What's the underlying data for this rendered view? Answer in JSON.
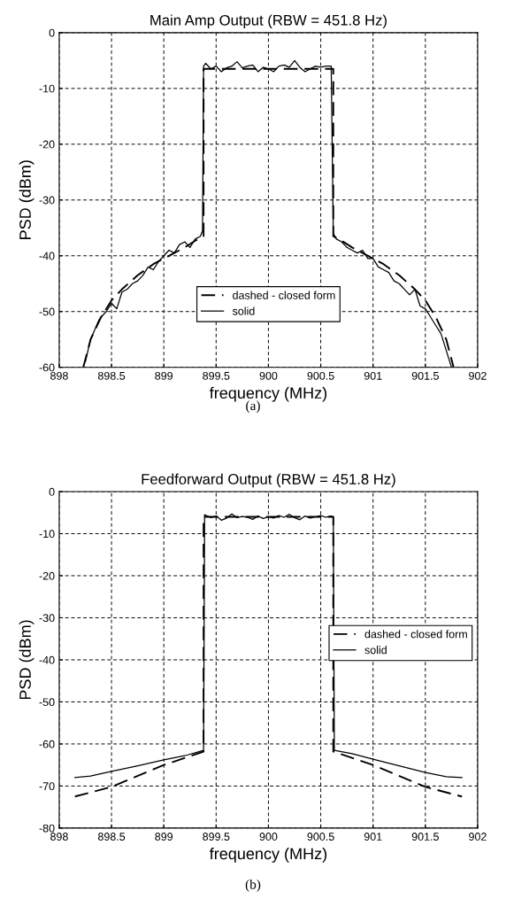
{
  "chart_data": [
    {
      "type": "line",
      "title": "Main Amp Output (RBW = 451.8 Hz)",
      "xlabel": "frequency (MHz)",
      "ylabel": "PSD (dBm)",
      "xlim": [
        898,
        902
      ],
      "ylim": [
        -60,
        0
      ],
      "xticks": [
        898,
        898.5,
        899,
        899.5,
        900,
        900.5,
        901,
        901.5,
        902
      ],
      "yticks": [
        -60,
        -50,
        -40,
        -30,
        -20,
        -10,
        0
      ],
      "grid": true,
      "legend": "bottom",
      "annotations": [
        "(a)"
      ],
      "series": [
        {
          "name": "dashed - closed form",
          "color": "#000000",
          "line_style": "dashed",
          "x": [
            898.23,
            898.3,
            898.4,
            898.5,
            898.6,
            898.75,
            898.9,
            899.0,
            899.1,
            899.2,
            899.3,
            899.38,
            899.38,
            899.5,
            900.0,
            900.5,
            900.62,
            900.62,
            900.7,
            900.8,
            900.9,
            901.0,
            901.1,
            901.25,
            901.4,
            901.5,
            901.6,
            901.7,
            901.77
          ],
          "values": [
            -60,
            -55,
            -51,
            -48,
            -46,
            -43.5,
            -41.5,
            -40.5,
            -39.5,
            -38.5,
            -37.3,
            -36.5,
            -6.5,
            -6.5,
            -6.5,
            -6.5,
            -6.5,
            -36.5,
            -37.3,
            -38.5,
            -39.5,
            -40.5,
            -41.5,
            -43.5,
            -46,
            -48,
            -51,
            -55,
            -60
          ]
        },
        {
          "name": "solid",
          "color": "#000000",
          "line_style": "solid",
          "x": [
            898.25,
            898.3,
            898.38,
            898.4,
            898.45,
            898.5,
            898.55,
            898.6,
            898.65,
            898.7,
            898.75,
            898.8,
            898.85,
            898.9,
            898.95,
            899.0,
            899.05,
            899.1,
            899.15,
            899.2,
            899.25,
            899.3,
            899.35,
            899.37,
            899.38,
            899.4,
            899.45,
            899.5,
            899.55,
            899.6,
            899.65,
            899.7,
            899.75,
            899.8,
            899.85,
            899.9,
            899.95,
            900.0,
            900.05,
            900.1,
            900.15,
            900.2,
            900.25,
            900.3,
            900.35,
            900.4,
            900.45,
            900.5,
            900.55,
            900.6,
            900.62,
            900.65,
            900.7,
            900.75,
            900.8,
            900.85,
            900.9,
            900.95,
            901.0,
            901.05,
            901.1,
            901.15,
            901.2,
            901.25,
            901.3,
            901.35,
            901.4,
            901.45,
            901.5,
            901.55,
            901.6,
            901.65,
            901.7,
            901.75
          ],
          "values": [
            -59,
            -55,
            -51.5,
            -51,
            -50,
            -48.5,
            -49.5,
            -46.5,
            -46,
            -45,
            -44.5,
            -43.5,
            -42,
            -42.5,
            -41,
            -40,
            -39,
            -39.5,
            -38,
            -37.5,
            -38.5,
            -37,
            -36.5,
            -35.5,
            -6,
            -5.5,
            -6.5,
            -6,
            -7,
            -6.3,
            -6,
            -5.2,
            -6.3,
            -6,
            -5.8,
            -7,
            -6.2,
            -6.5,
            -7,
            -6,
            -5.8,
            -6.2,
            -5,
            -6.2,
            -7,
            -6.5,
            -6,
            -6.2,
            -6,
            -6,
            -36,
            -37,
            -37.5,
            -38.5,
            -39,
            -39.5,
            -39,
            -40.5,
            -40.5,
            -42,
            -42.5,
            -43,
            -44.5,
            -45,
            -46,
            -47,
            -46,
            -49,
            -49.5,
            -51,
            -52.5,
            -54,
            -57,
            -60
          ]
        }
      ]
    },
    {
      "type": "line",
      "title": "Feedforward Output (RBW = 451.8 Hz)",
      "xlabel": "frequency (MHz)",
      "ylabel": "PSD (dBm)",
      "xlim": [
        898,
        902
      ],
      "ylim": [
        -80,
        0
      ],
      "xticks": [
        898,
        898.5,
        899,
        899.5,
        900,
        900.5,
        901,
        901.5,
        902
      ],
      "yticks": [
        -80,
        -70,
        -60,
        -50,
        -40,
        -30,
        -20,
        -10,
        0
      ],
      "grid": true,
      "legend": "right",
      "annotations": [
        "(b)"
      ],
      "series": [
        {
          "name": "dashed - closed form",
          "color": "#000000",
          "line_style": "dashed",
          "x": [
            898.15,
            898.5,
            899.0,
            899.38,
            899.38,
            900.0,
            900.62,
            900.62,
            901.0,
            901.5,
            901.85
          ],
          "values": [
            -72.5,
            -70.2,
            -65,
            -61.8,
            -6,
            -6,
            -6,
            -61.8,
            -65,
            -70.2,
            -72.5
          ]
        },
        {
          "name": "solid",
          "color": "#000000",
          "line_style": "solid",
          "x": [
            898.15,
            898.3,
            898.5,
            898.75,
            899.0,
            899.2,
            899.38,
            899.39,
            899.45,
            899.5,
            899.55,
            899.6,
            899.65,
            899.7,
            899.75,
            899.8,
            899.85,
            899.9,
            899.95,
            900.0,
            900.05,
            900.1,
            900.15,
            900.2,
            900.25,
            900.3,
            900.35,
            900.4,
            900.45,
            900.5,
            900.55,
            900.6,
            900.62,
            900.63,
            900.8,
            901.0,
            901.25,
            901.5,
            901.7,
            901.85
          ],
          "values": [
            -68,
            -67.6,
            -66.5,
            -65.2,
            -63.8,
            -62.8,
            -61.5,
            -5.5,
            -6.2,
            -5.8,
            -6.8,
            -6.3,
            -5.3,
            -6.2,
            -5.9,
            -6.1,
            -6.6,
            -5.8,
            -6.4,
            -6,
            -6.3,
            -5.7,
            -6.1,
            -5.4,
            -6.2,
            -6.7,
            -5.8,
            -6.3,
            -6,
            -5.7,
            -6.1,
            -5.8,
            -6,
            -61.5,
            -62.3,
            -63.6,
            -65.2,
            -66.8,
            -67.8,
            -68
          ]
        }
      ]
    }
  ]
}
